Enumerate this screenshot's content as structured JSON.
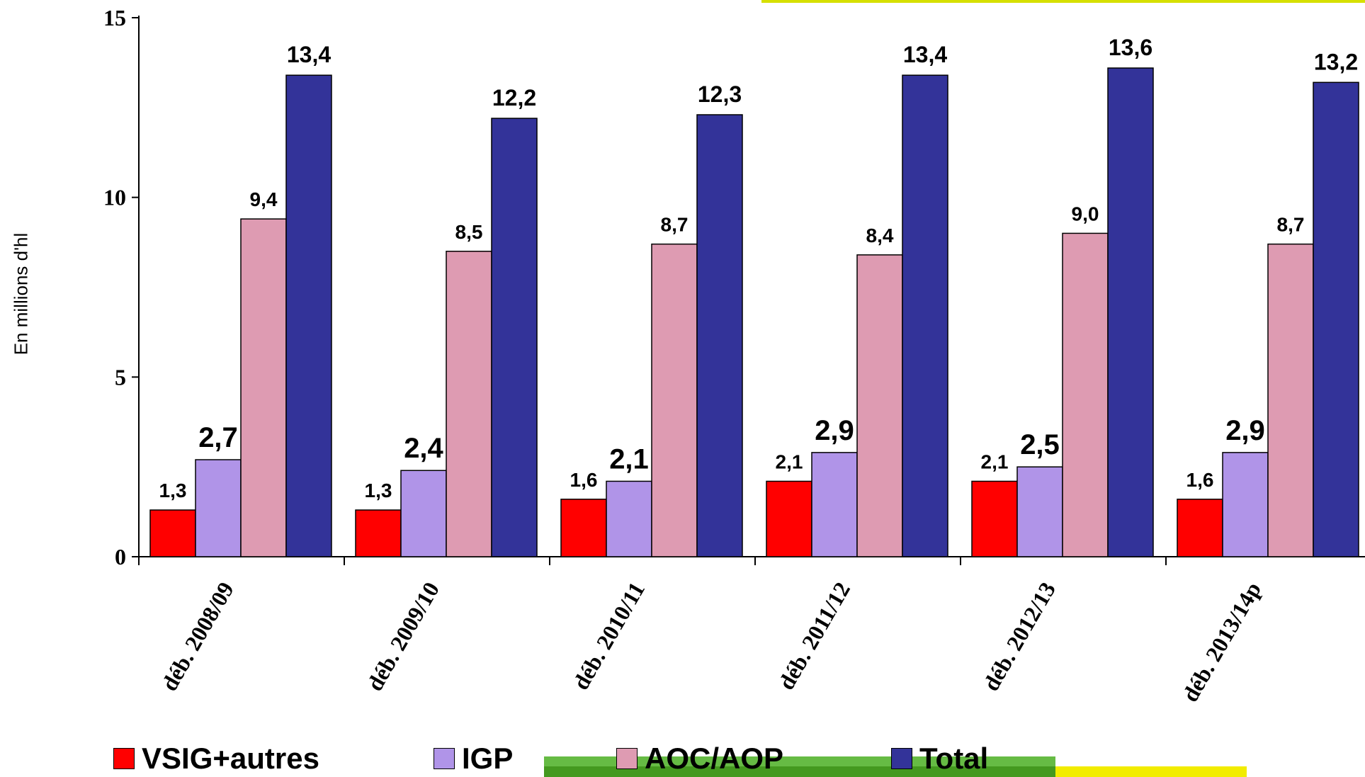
{
  "chart_data": {
    "type": "bar",
    "title": "",
    "xlabel": "",
    "ylabel": "En millions d'hl",
    "ylim": [
      0,
      15
    ],
    "yticks": [
      0,
      5,
      10,
      15
    ],
    "categories": [
      "déb. 2008/09",
      "déb. 2009/10",
      "déb. 2010/11",
      "déb. 2011/12",
      "déb. 2012/13",
      "déb. 2013/14p"
    ],
    "series": [
      {
        "name": "VSIG+autres",
        "color": "#ff0000",
        "values": [
          1.3,
          1.3,
          1.6,
          2.1,
          2.1,
          1.6
        ],
        "labels": [
          "1,3",
          "1,3",
          "1,6",
          "2,1",
          "2,1",
          "1,6"
        ]
      },
      {
        "name": "IGP",
        "color": "#b094e8",
        "values": [
          2.7,
          2.4,
          2.1,
          2.9,
          2.5,
          2.9
        ],
        "labels": [
          "2,7",
          "2,4",
          "2,1",
          "2,9",
          "2,5",
          "2,9"
        ]
      },
      {
        "name": "AOC/AOP",
        "color": "#de9bb2",
        "values": [
          9.4,
          8.5,
          8.7,
          8.4,
          9.0,
          8.7
        ],
        "labels": [
          "9,4",
          "8,5",
          "8,7",
          "8,4",
          "9,0",
          "8,7"
        ]
      },
      {
        "name": "Total",
        "color": "#333399",
        "values": [
          13.4,
          12.2,
          12.3,
          13.4,
          13.6,
          13.2
        ],
        "labels": [
          "13,4",
          "12,2",
          "12,3",
          "13,4",
          "13,6",
          "13,2"
        ]
      }
    ],
    "grid": false,
    "legend_position": "bottom"
  }
}
